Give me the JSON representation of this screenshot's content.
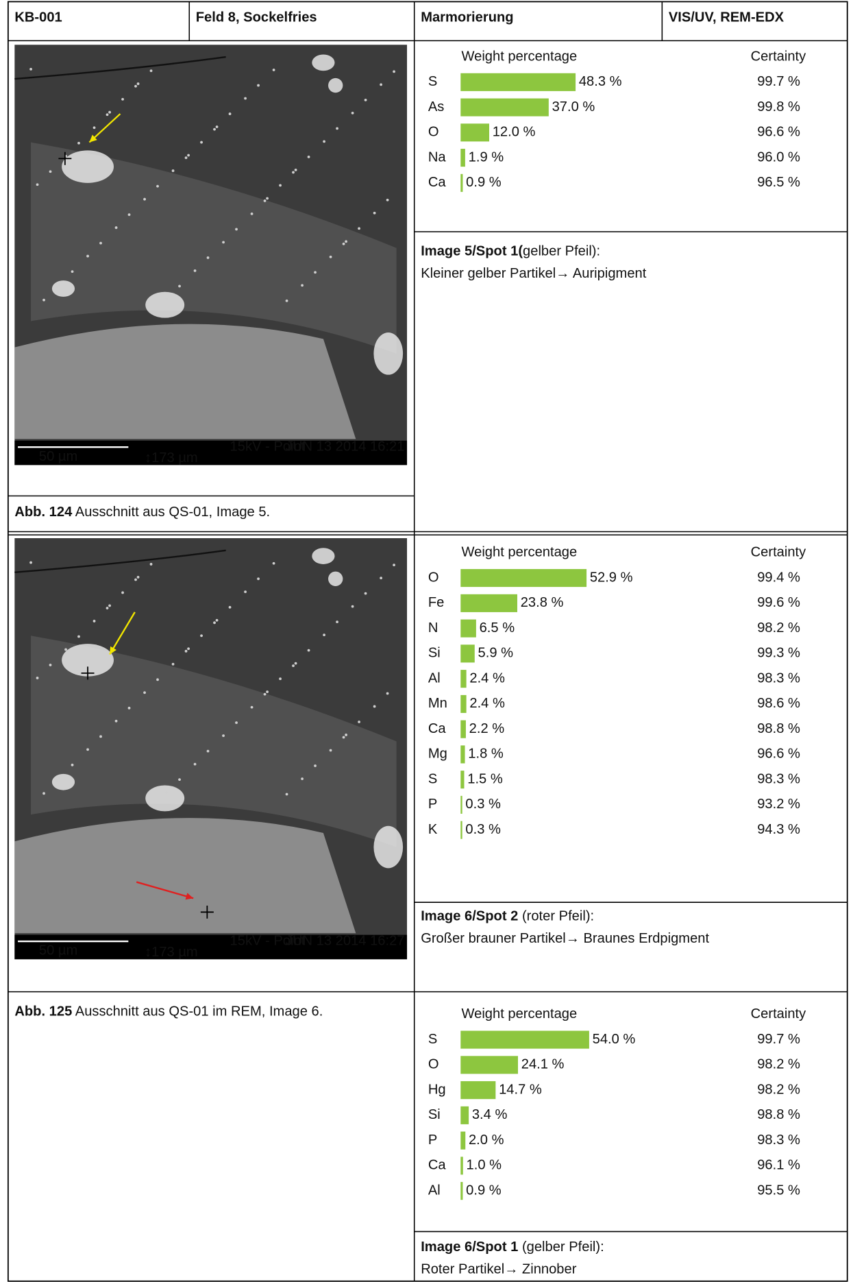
{
  "header": {
    "cells": [
      "KB-001",
      "Feld 8, Sockelfries",
      "Marmorierung",
      "VIS/UV, REM-EDX"
    ]
  },
  "images": [
    {
      "caption_label": "Abb. 124",
      "caption_text": " Ausschnitt aus QS-01, Image 5.",
      "scale": "50 µm",
      "field": "↕173 µm",
      "mode": "15kV - Point",
      "date": "JUN 13 2014 16:21"
    },
    {
      "caption_label": "Abb. 125",
      "caption_text": " Ausschnitt aus QS-01 im REM, Image 6.",
      "scale": "50 µm",
      "field": "↕173 µm",
      "mode": "15kV - Point",
      "date": "JUN 13 2014 16:27"
    }
  ],
  "analyses": [
    {
      "value_header": "Weight percentage",
      "certainty_header": "Certainty",
      "elements": [
        "S",
        "As",
        "O",
        "Na",
        "Ca"
      ],
      "values": [
        48.3,
        37.0,
        12.0,
        1.9,
        0.9
      ],
      "value_labels": [
        "48.3 %",
        "37.0 %",
        "12.0 %",
        "1.9 %",
        "0.9 %"
      ],
      "certainty": [
        "99.7 %",
        "99.8 %",
        "96.6 %",
        "96.0 %",
        "96.5 %"
      ],
      "color": "#8dc63f",
      "spot_label": "Image 5/Spot 1(",
      "spot_note": "gelber Pfeil):",
      "result": "Kleiner gelber Partikel→ Auripigment"
    },
    {
      "value_header": "Weight percentage",
      "certainty_header": "Certainty",
      "elements": [
        "O",
        "Fe",
        "N",
        "Si",
        "Al",
        "Mn",
        "Ca",
        "Mg",
        "S",
        "P",
        "K"
      ],
      "values": [
        52.9,
        23.8,
        6.5,
        5.9,
        2.4,
        2.4,
        2.2,
        1.8,
        1.5,
        0.3,
        0.3
      ],
      "value_labels": [
        "52.9 %",
        "23.8 %",
        "6.5 %",
        "5.9 %",
        "2.4 %",
        "2.4 %",
        "2.2 %",
        "1.8 %",
        "1.5 %",
        "0.3 %",
        "0.3 %"
      ],
      "certainty": [
        "99.4 %",
        "99.6 %",
        "98.2 %",
        "99.3 %",
        "98.3 %",
        "98.6 %",
        "98.8 %",
        "96.6 %",
        "98.3 %",
        "93.2 %",
        "94.3 %"
      ],
      "color": "#8dc63f",
      "spot_label": "Image 6/Spot 2",
      "spot_note": " (roter Pfeil):",
      "result": "Großer brauner Partikel→ Braunes Erdpigment"
    },
    {
      "value_header": "Weight percentage",
      "certainty_header": "Certainty",
      "elements": [
        "S",
        "O",
        "Hg",
        "Si",
        "P",
        "Ca",
        "Al"
      ],
      "values": [
        54.0,
        24.1,
        14.7,
        3.4,
        2.0,
        1.0,
        0.9
      ],
      "value_labels": [
        "54.0 %",
        "24.1 %",
        "14.7 %",
        "3.4 %",
        "2.0 %",
        "1.0 %",
        "0.9 %"
      ],
      "certainty": [
        "99.7 %",
        "98.2 %",
        "98.2 %",
        "98.8 %",
        "98.3 %",
        "96.1 %",
        "95.5 %"
      ],
      "color": "#8dc63f",
      "spot_label": "Image 6/Spot 1",
      "spot_note": " (gelber Pfeil):",
      "result": "Roter Partikel→ Zinnober"
    }
  ]
}
